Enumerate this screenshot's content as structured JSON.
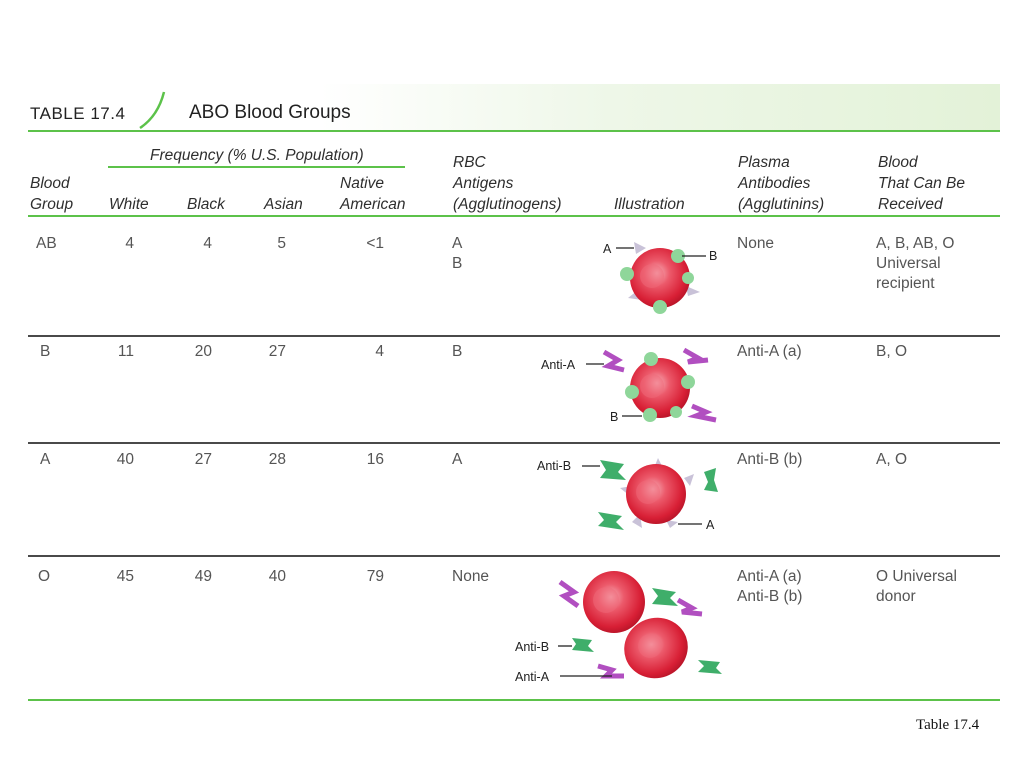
{
  "table": {
    "label": "TABLE 17.4",
    "title": "ABO Blood Groups",
    "frequency_header": "Frequency (% U.S. Population)",
    "headers": {
      "blood_group": "Blood\nGroup",
      "white": "White",
      "black": "Black",
      "asian": "Asian",
      "native_american": "Native\nAmerican",
      "rbc_antigens": "RBC\nAntigens\n(Agglutinogens)",
      "illustration": "Illustration",
      "plasma_antibodies": "Plasma\nAntibodies\n(Agglutinins)",
      "blood_received": "Blood\nThat Can Be\nReceived"
    },
    "rows": [
      {
        "group": "AB",
        "white": "4",
        "black": "4",
        "asian": "5",
        "native_american": "<1",
        "antigens": "A\nB",
        "antibodies": "None",
        "received": "A, B, AB, O\nUniversal\nrecipient",
        "illustration_labels": [
          "A",
          "B"
        ]
      },
      {
        "group": "B",
        "white": "11",
        "black": "20",
        "asian": "27",
        "native_american": "4",
        "antigens": "B",
        "antibodies": "Anti-A (a)",
        "received": "B, O",
        "illustration_labels": [
          "Anti-A",
          "B"
        ]
      },
      {
        "group": "A",
        "white": "40",
        "black": "27",
        "asian": "28",
        "native_american": "16",
        "antigens": "A",
        "antibodies": "Anti-B (b)",
        "received": "A, O",
        "illustration_labels": [
          "Anti-B",
          "A"
        ]
      },
      {
        "group": "O",
        "white": "45",
        "black": "49",
        "asian": "40",
        "native_american": "79",
        "antigens": "None",
        "antibodies": "Anti-A (a)\nAnti-B (b)",
        "received": "O Universal\ndonor",
        "illustration_labels": [
          "Anti-B",
          "Anti-A"
        ]
      }
    ]
  },
  "footer_caption": "Table 17.4",
  "colors": {
    "accent_green": "#5cc24a",
    "rbc_red": "#e8374a",
    "antigen_a": "#c9c2d8",
    "antigen_b": "#8fd69a",
    "anti_a": "#b14fc0",
    "anti_b": "#3fae6a"
  }
}
